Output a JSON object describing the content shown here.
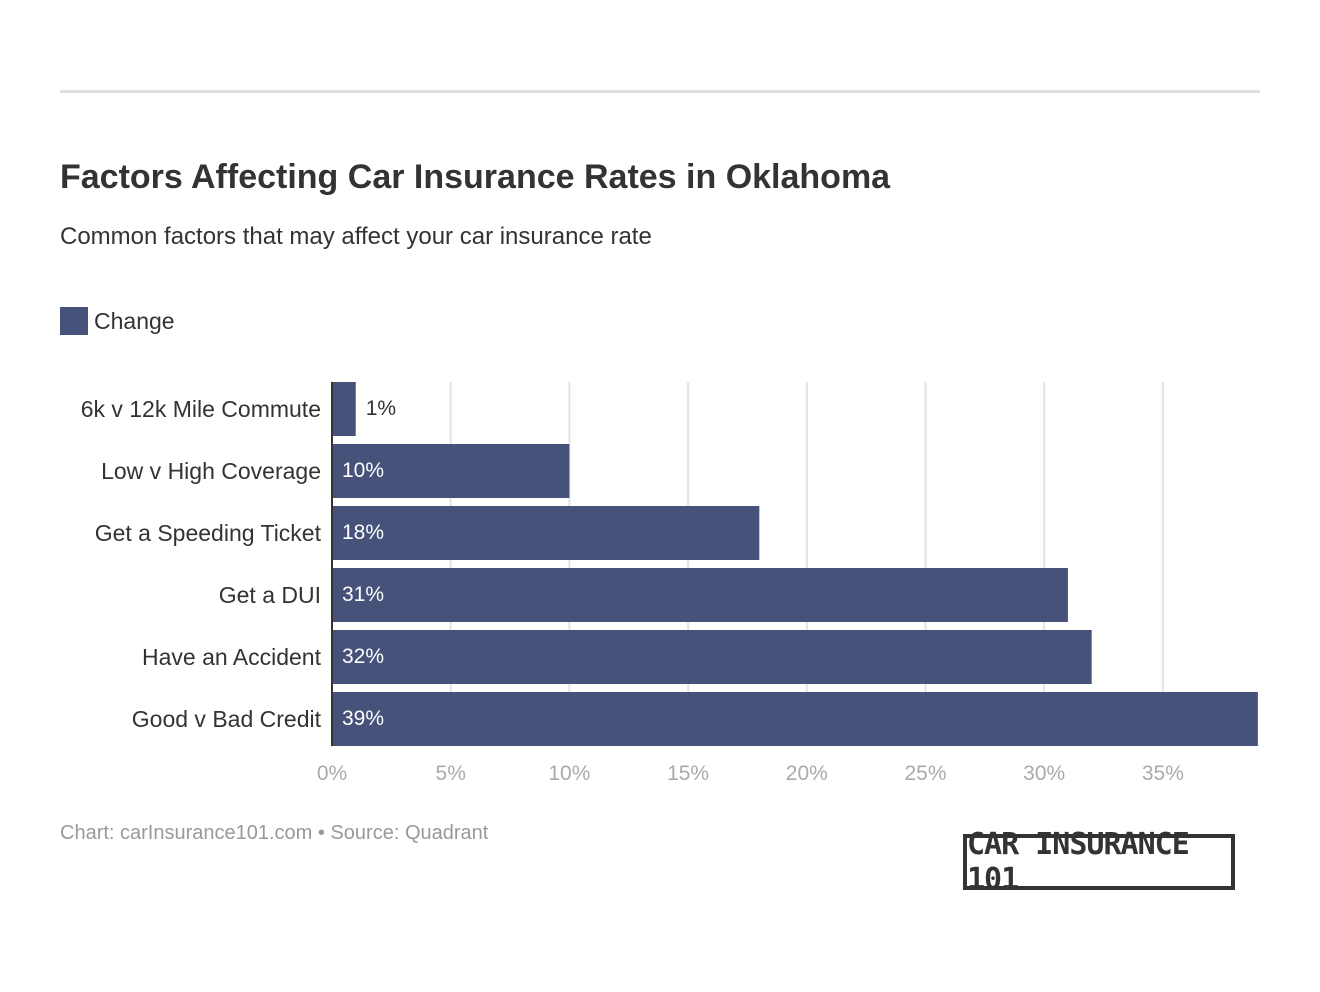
{
  "chart_data": {
    "type": "bar",
    "orientation": "horizontal",
    "title": "Factors Affecting Car Insurance Rates in Oklahoma",
    "subtitle": "Common factors that may affect your car insurance rate",
    "categories": [
      "6k v 12k Mile Commute",
      "Low v High Coverage",
      "Get a Speeding Ticket",
      "Get a DUI",
      "Have an Accident",
      "Good v Bad Credit"
    ],
    "series": [
      {
        "name": "Change",
        "values": [
          1,
          10,
          18,
          31,
          32,
          39
        ]
      }
    ],
    "data_labels": [
      "1%",
      "10%",
      "18%",
      "31%",
      "32%",
      "39%"
    ],
    "xlim": [
      0,
      39
    ],
    "x_ticks": [
      0,
      5,
      10,
      15,
      20,
      25,
      30,
      35
    ],
    "x_tick_labels": [
      "0%",
      "5%",
      "10%",
      "15%",
      "20%",
      "25%",
      "30%",
      "35%"
    ],
    "grid": "vertical",
    "legend_position": "top-left",
    "bar_color": "#47527a"
  },
  "footer": "Chart: carInsurance101.com • Source: Quadrant",
  "logo_text": "CAR INSURANCE 101"
}
